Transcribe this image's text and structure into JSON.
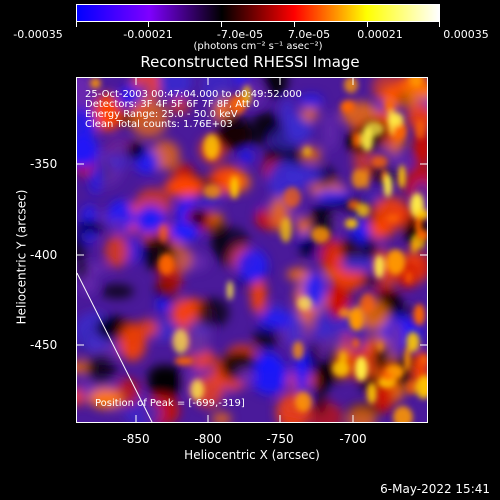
{
  "colorbar": {
    "tick_labels": [
      "-0.00035",
      "-0.00021",
      "-7.0e-05",
      "7.0e-05",
      "0.00021",
      "0.00035"
    ],
    "unit": "(photons cm⁻² s⁻¹ asec⁻²)",
    "colors": [
      "#0000ff",
      "#7f00ff",
      "#000000",
      "#ff0000",
      "#ffff00",
      "#ffffff"
    ]
  },
  "plot": {
    "title": "Reconstructed RHESSI Image",
    "info_lines": [
      "25-Oct-2003 00:47:04.000 to 00:49:52.000",
      "Detectors: 3F 4F 5F 6F 7F 8F, Att 0",
      "Energy Range: 25.0 - 50.0 keV",
      "Clean      Total counts: 1.76E+03"
    ],
    "peak_text": "Position of Peak = [-699,-319]",
    "x_ticks": [
      "-850",
      "-800",
      "-750",
      "-700"
    ],
    "y_ticks": [
      "-350",
      "-400",
      "-450"
    ],
    "xlabel": "Heliocentric X (arcsec)",
    "ylabel": "Heliocentric Y (arcsec)"
  },
  "footer": {
    "timestamp": "6-May-2022 15:41"
  }
}
